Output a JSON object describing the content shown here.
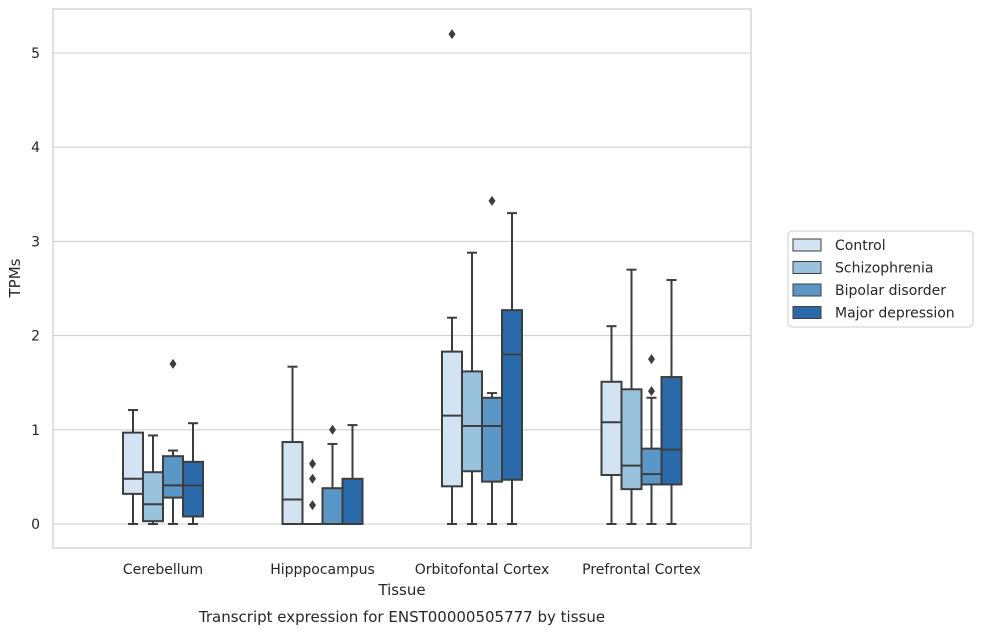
{
  "chart_data": {
    "type": "boxplot",
    "title": "",
    "caption": "Transcript expression for ENST00000505777 by tissue",
    "xlabel": "Tissue",
    "ylabel": "TPMs",
    "ylim": [
      -0.25,
      5.47
    ],
    "yticks": [
      0,
      1,
      2,
      3,
      4,
      5
    ],
    "grid": "horizontal",
    "legend_position": "right",
    "categories": [
      "Cerebellum",
      "Hipppocampus",
      "Orbitofontal Cortex",
      "Prefrontal Cortex"
    ],
    "series": [
      {
        "name": "Control",
        "color": "#d4e3f1",
        "boxes": [
          {
            "whisker_low": 0,
            "q1": 0.32,
            "median": 0.48,
            "q3": 0.97,
            "whisker_high": 1.21,
            "outliers": []
          },
          {
            "whisker_low": 0,
            "q1": 0,
            "median": 0.26,
            "q3": 0.87,
            "whisker_high": 1.67,
            "outliers": []
          },
          {
            "whisker_low": 0,
            "q1": 0.4,
            "median": 1.15,
            "q3": 1.83,
            "whisker_high": 2.19,
            "outliers": [
              5.2
            ]
          },
          {
            "whisker_low": 0,
            "q1": 0.52,
            "median": 1.08,
            "q3": 1.51,
            "whisker_high": 2.1,
            "outliers": []
          }
        ]
      },
      {
        "name": "Schizophrenia",
        "color": "#99c2dc",
        "boxes": [
          {
            "whisker_low": 0,
            "q1": 0.03,
            "median": 0.21,
            "q3": 0.55,
            "whisker_high": 0.94,
            "outliers": []
          },
          {
            "whisker_low": 0,
            "q1": 0,
            "median": 0,
            "q3": 0,
            "whisker_high": 0,
            "outliers": [
              0.2,
              0.48,
              0.64
            ]
          },
          {
            "whisker_low": 0,
            "q1": 0.56,
            "median": 1.04,
            "q3": 1.62,
            "whisker_high": 2.88,
            "outliers": []
          },
          {
            "whisker_low": 0,
            "q1": 0.37,
            "median": 0.62,
            "q3": 1.43,
            "whisker_high": 2.7,
            "outliers": []
          }
        ]
      },
      {
        "name": "Bipolar disorder",
        "color": "#5b97c6",
        "boxes": [
          {
            "whisker_low": 0,
            "q1": 0.28,
            "median": 0.41,
            "q3": 0.72,
            "whisker_high": 0.78,
            "outliers": [
              1.7
            ]
          },
          {
            "whisker_low": 0,
            "q1": 0,
            "median": 0,
            "q3": 0.38,
            "whisker_high": 0.85,
            "outliers": [
              1.0
            ]
          },
          {
            "whisker_low": 0,
            "q1": 0.45,
            "median": 1.04,
            "q3": 1.34,
            "whisker_high": 1.39,
            "outliers": [
              3.43
            ]
          },
          {
            "whisker_low": 0,
            "q1": 0.42,
            "median": 0.53,
            "q3": 0.8,
            "whisker_high": 1.34,
            "outliers": [
              1.41,
              1.75
            ]
          }
        ]
      },
      {
        "name": "Major depression",
        "color": "#2a6aaa",
        "boxes": [
          {
            "whisker_low": 0,
            "q1": 0.08,
            "median": 0.41,
            "q3": 0.66,
            "whisker_high": 1.07,
            "outliers": []
          },
          {
            "whisker_low": 0,
            "q1": 0,
            "median": 0,
            "q3": 0.48,
            "whisker_high": 1.05,
            "outliers": []
          },
          {
            "whisker_low": 0,
            "q1": 0.47,
            "median": 1.8,
            "q3": 2.27,
            "whisker_high": 3.3,
            "outliers": []
          },
          {
            "whisker_low": 0,
            "q1": 0.42,
            "median": 0.79,
            "q3": 1.56,
            "whisker_high": 2.59,
            "outliers": []
          }
        ]
      }
    ]
  }
}
